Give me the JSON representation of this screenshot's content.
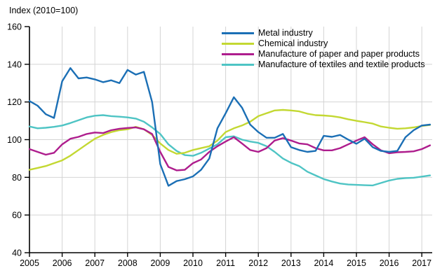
{
  "title": "Index (2010=100)",
  "chart_data": {
    "type": "line",
    "title": "Index (2010=100)",
    "xlabel": "",
    "ylabel": "",
    "xlim": [
      2005,
      2017.35
    ],
    "ylim": [
      40,
      160
    ],
    "y_ticks": [
      40,
      60,
      80,
      100,
      120,
      140,
      160
    ],
    "x_ticks": [
      2005,
      2006,
      2007,
      2008,
      2009,
      2010,
      2011,
      2012,
      2013,
      2014,
      2015,
      2016,
      2017
    ],
    "grid": true,
    "grid_color": "#d4d4d4",
    "axis_color": "#000000",
    "legend_position": "top-right-inside",
    "x": [
      2005.0,
      2005.25,
      2005.5,
      2005.75,
      2006.0,
      2006.25,
      2006.5,
      2006.75,
      2007.0,
      2007.25,
      2007.5,
      2007.75,
      2008.0,
      2008.25,
      2008.5,
      2008.75,
      2009.0,
      2009.25,
      2009.5,
      2009.75,
      2010.0,
      2010.25,
      2010.5,
      2010.75,
      2011.0,
      2011.25,
      2011.5,
      2011.75,
      2012.0,
      2012.25,
      2012.5,
      2012.75,
      2013.0,
      2013.25,
      2013.5,
      2013.75,
      2014.0,
      2014.25,
      2014.5,
      2014.75,
      2015.0,
      2015.25,
      2015.5,
      2015.75,
      2016.0,
      2016.25,
      2016.5,
      2016.75,
      2017.0,
      2017.25
    ],
    "series": [
      {
        "name": "Metal industry",
        "color": "#1b6fb5",
        "values": [
          120.5,
          118,
          113.5,
          111.5,
          131,
          138,
          132.5,
          133,
          132,
          130.5,
          131.5,
          130,
          137,
          134.5,
          136,
          120,
          87,
          75.5,
          78,
          79,
          80.5,
          84,
          90,
          106,
          114,
          122.5,
          117,
          108,
          104,
          101,
          101,
          103,
          96,
          94.5,
          93.5,
          94,
          102,
          101.5,
          102.5,
          100,
          97.8,
          100.5,
          96,
          94,
          93.5,
          94,
          101.3,
          105,
          107.5,
          108
        ]
      },
      {
        "name": "Chemical industry",
        "color": "#c3d832",
        "values": [
          84,
          85,
          86,
          87.5,
          89,
          91.5,
          94.5,
          97.5,
          100.5,
          102.5,
          104,
          105,
          105.5,
          106.8,
          105.5,
          102.5,
          98,
          94.5,
          92.5,
          93,
          94.5,
          95.5,
          96.5,
          99.5,
          104,
          106,
          107.5,
          109.5,
          112.5,
          114,
          115.5,
          115.8,
          115.5,
          115,
          113.8,
          113,
          112.8,
          112.5,
          111.8,
          110.8,
          110,
          109.3,
          108.5,
          107,
          106.3,
          105.8,
          106,
          106.5,
          107.3,
          107.8
        ]
      },
      {
        "name": "Manufacture of paper and paper products",
        "color": "#ae1d8d",
        "values": [
          95,
          93.5,
          92,
          93,
          97.5,
          100.5,
          101.5,
          103,
          103.8,
          103.5,
          105,
          105.8,
          106.2,
          106.5,
          105.5,
          103,
          93.5,
          85.5,
          83.7,
          84,
          87.5,
          89.5,
          93.5,
          96.5,
          99,
          101.3,
          98,
          94.5,
          93.5,
          95.5,
          99.5,
          100.8,
          99.5,
          98,
          97.5,
          95.5,
          94.3,
          94.3,
          95.5,
          97.5,
          99.5,
          101.3,
          97.5,
          94.3,
          92.8,
          93.3,
          93.5,
          93.8,
          95,
          97
        ]
      },
      {
        "name": "Manufacture of textiles and textile products",
        "color": "#4ec4c4",
        "values": [
          107,
          106,
          106.3,
          106.8,
          107.5,
          108.8,
          110.3,
          111.8,
          112.7,
          113,
          112.5,
          112.2,
          111.8,
          111.2,
          109.5,
          106.5,
          103,
          97.5,
          94,
          91.8,
          91.4,
          93,
          95.3,
          97.5,
          101.3,
          101.8,
          100,
          99,
          98.3,
          96.5,
          93.5,
          90,
          87.7,
          86,
          83,
          81,
          79.1,
          77.8,
          76.7,
          76.2,
          76,
          75.8,
          75.7,
          77,
          78.3,
          79.2,
          79.6,
          79.8,
          80.4,
          81
        ]
      }
    ]
  }
}
